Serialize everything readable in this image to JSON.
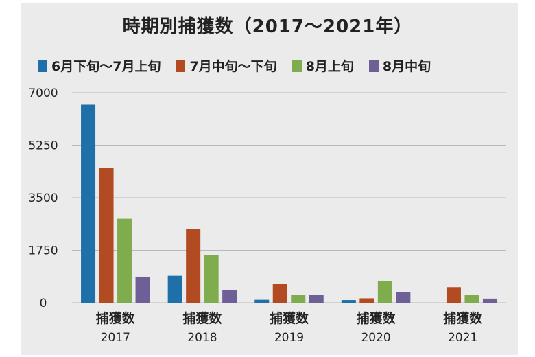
{
  "chart_data": {
    "type": "bar",
    "title": "時期別捕獲数（2017～2021年）",
    "categories": [
      {
        "label": "捕獲数",
        "year": "2017"
      },
      {
        "label": "捕獲数",
        "year": "2018"
      },
      {
        "label": "捕獲数",
        "year": "2019"
      },
      {
        "label": "捕獲数",
        "year": "2020"
      },
      {
        "label": "捕獲数",
        "year": "2021"
      }
    ],
    "series": [
      {
        "name": "6月下旬～7月上旬",
        "color": "#1f6fa8",
        "values": [
          6600,
          900,
          100,
          90,
          0
        ]
      },
      {
        "name": "7月中旬～下旬",
        "color": "#b24a22",
        "values": [
          4500,
          2450,
          620,
          150,
          520
        ]
      },
      {
        "name": "8月上旬",
        "color": "#7fad4e",
        "values": [
          2800,
          1580,
          270,
          720,
          270
        ]
      },
      {
        "name": "8月中旬",
        "color": "#6e5f97",
        "values": [
          870,
          420,
          260,
          350,
          140
        ]
      }
    ],
    "yticks": [
      "0",
      "1750",
      "3500",
      "5250",
      "7000"
    ],
    "ylim": [
      0,
      7000
    ],
    "grid": true,
    "legend_position": "top"
  }
}
